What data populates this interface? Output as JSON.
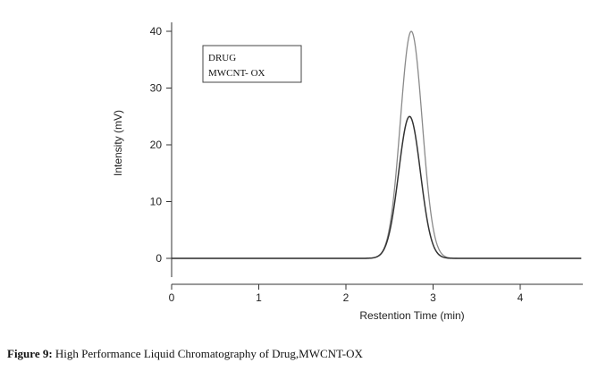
{
  "chart_data": {
    "type": "line",
    "xlabel": "Restention Time (min)",
    "ylabel": "Intensity (mV)",
    "xlim": [
      0,
      4.7
    ],
    "ylim": [
      -4,
      42
    ],
    "x_ticks": [
      0,
      1,
      2,
      3,
      4
    ],
    "y_ticks": [
      0,
      10,
      20,
      30,
      40
    ],
    "legend": {
      "position": "top-left",
      "entries": [
        "DRUG",
        "MWCNT- OX"
      ]
    },
    "grid": false,
    "series": [
      {
        "name": "DRUG",
        "peak_x": 2.75,
        "peak_y": 40,
        "baseline": 0,
        "color": "#8a8a8a"
      },
      {
        "name": "MWCNT- OX",
        "peak_x": 2.73,
        "peak_y": 25,
        "baseline": 0,
        "color": "#333333"
      }
    ]
  },
  "caption": {
    "label": "Figure 9:",
    "text": "High Performance Liquid Chromatography of Drug,MWCNT-OX"
  }
}
